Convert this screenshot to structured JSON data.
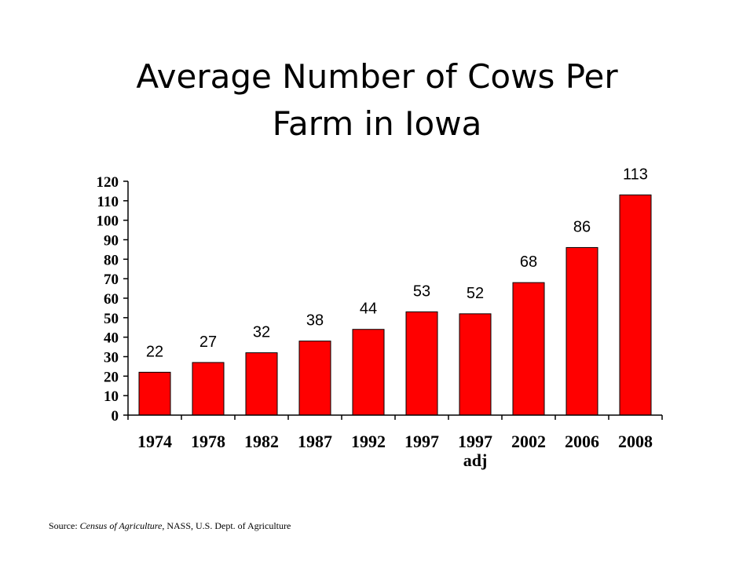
{
  "title_line1": "Average Number of Cows Per",
  "title_line2": "Farm in Iowa",
  "source": {
    "prefix": "Source: ",
    "publication": "Census of Agriculture",
    "rest": ", NASS,  U.S.  Dept.  of Agriculture"
  },
  "colors": {
    "bar": "#ff0000",
    "bar_outline": "#000000",
    "axis": "#000000"
  },
  "chart_data": {
    "type": "bar",
    "title": "Average Number of Cows Per Farm in Iowa",
    "categories": [
      [
        "1974"
      ],
      [
        "1978"
      ],
      [
        "1982"
      ],
      [
        "1987"
      ],
      [
        "1992"
      ],
      [
        "1997"
      ],
      [
        "1997",
        "adj"
      ],
      [
        "2002"
      ],
      [
        "2006"
      ],
      [
        "2008"
      ]
    ],
    "values": [
      22,
      27,
      32,
      38,
      44,
      53,
      52,
      68,
      86,
      113
    ],
    "data_labels": [
      "22",
      "27",
      "32",
      "38",
      "44",
      "53",
      "52",
      "68",
      "86",
      "113"
    ],
    "ylim": [
      0,
      120
    ],
    "yticks": [
      0,
      10,
      20,
      30,
      40,
      50,
      60,
      70,
      80,
      90,
      100,
      110,
      120
    ],
    "xlabel": "",
    "ylabel": "",
    "grid": false,
    "legend": "none"
  }
}
